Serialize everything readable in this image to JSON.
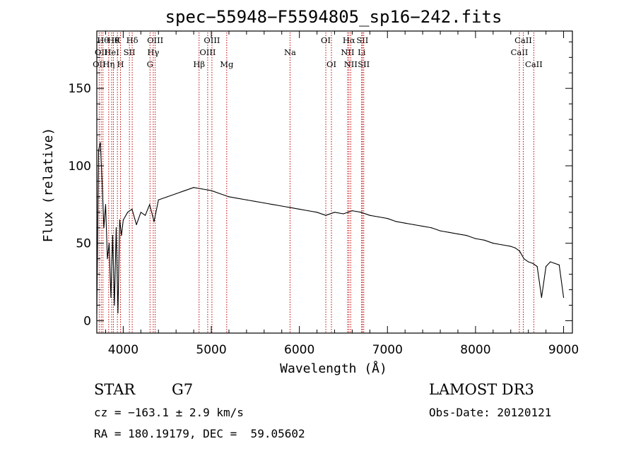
{
  "chart_data": {
    "type": "line",
    "title": "spec−55948−F5594805_sp16−242.fits",
    "xlabel": "Wavelength (Å)",
    "ylabel": "Flux (relative)",
    "xlim": [
      3700,
      9100
    ],
    "ylim": [
      -8,
      187
    ],
    "xticks": [
      4000,
      5000,
      6000,
      7000,
      8000,
      9000
    ],
    "yticks": [
      0,
      50,
      100,
      150
    ],
    "grid": false,
    "series": [
      {
        "name": "spectrum",
        "x": [
          3700,
          3720,
          3740,
          3760,
          3780,
          3800,
          3820,
          3840,
          3860,
          3880,
          3900,
          3920,
          3940,
          3960,
          3980,
          4000,
          4050,
          4100,
          4150,
          4200,
          4250,
          4300,
          4350,
          4400,
          4500,
          4600,
          4700,
          4800,
          4900,
          5000,
          5100,
          5200,
          5300,
          5400,
          5500,
          5600,
          5700,
          5800,
          5900,
          6000,
          6100,
          6200,
          6300,
          6400,
          6500,
          6600,
          6700,
          6800,
          6900,
          7000,
          7100,
          7200,
          7300,
          7400,
          7500,
          7600,
          7700,
          7800,
          7900,
          8000,
          8100,
          8200,
          8300,
          8400,
          8450,
          8500,
          8550,
          8600,
          8650,
          8700,
          8750,
          8800,
          8850,
          8900,
          8950,
          9000
        ],
        "y": [
          5,
          110,
          115,
          90,
          60,
          75,
          40,
          50,
          15,
          55,
          10,
          60,
          5,
          65,
          55,
          65,
          70,
          72,
          62,
          70,
          68,
          75,
          64,
          78,
          80,
          82,
          84,
          86,
          85,
          84,
          82,
          80,
          79,
          78,
          77,
          76,
          75,
          74,
          73,
          72,
          71,
          70,
          68,
          70,
          69,
          71,
          70,
          68,
          67,
          66,
          64,
          63,
          62,
          61,
          60,
          58,
          57,
          56,
          55,
          53,
          52,
          50,
          49,
          48,
          47,
          45,
          40,
          38,
          37,
          35,
          15,
          35,
          38,
          37,
          36,
          15
        ]
      }
    ],
    "lines": [
      {
        "x": 3727,
        "label": "OII",
        "row": 2
      },
      {
        "x": 3750,
        "label": "OII",
        "row": 1
      },
      {
        "x": 3770,
        "label": "Hθ",
        "row": 0
      },
      {
        "x": 3835,
        "label": "Hη",
        "row": 2
      },
      {
        "x": 3869,
        "label": "HeI",
        "row": 1
      },
      {
        "x": 3889,
        "label": "Hθ",
        "row": 0
      },
      {
        "x": 3934,
        "label": "K",
        "row": 0
      },
      {
        "x": 3969,
        "label": "H",
        "row": 2
      },
      {
        "x": 4070,
        "label": "SII",
        "row": 1
      },
      {
        "x": 4102,
        "label": "Hδ",
        "row": 0
      },
      {
        "x": 4304,
        "label": "G",
        "row": 2
      },
      {
        "x": 4341,
        "label": "Hγ",
        "row": 1
      },
      {
        "x": 4363,
        "label": "OIII",
        "row": 0
      },
      {
        "x": 4861,
        "label": "Hβ",
        "row": 2
      },
      {
        "x": 4959,
        "label": "OIII",
        "row": 1
      },
      {
        "x": 5007,
        "label": "OIII",
        "row": 0
      },
      {
        "x": 5175,
        "label": "Mg",
        "row": 2
      },
      {
        "x": 5894,
        "label": "Na",
        "row": 1
      },
      {
        "x": 6300,
        "label": "OI",
        "row": 0
      },
      {
        "x": 6364,
        "label": "OI",
        "row": 2
      },
      {
        "x": 6548,
        "label": "NII",
        "row": 1
      },
      {
        "x": 6563,
        "label": "Hα",
        "row": 0
      },
      {
        "x": 6583,
        "label": "NII",
        "row": 2
      },
      {
        "x": 6707,
        "label": "Li",
        "row": 1
      },
      {
        "x": 6716,
        "label": "SII",
        "row": 0
      },
      {
        "x": 6731,
        "label": "SII",
        "row": 2
      },
      {
        "x": 8498,
        "label": "CaII",
        "row": 1
      },
      {
        "x": 8542,
        "label": "CaII",
        "row": 0
      },
      {
        "x": 8662,
        "label": "CaII",
        "row": 2
      }
    ]
  },
  "info": {
    "object_class": "STAR",
    "subclass": "G7",
    "survey": "LAMOST DR3",
    "redshift_line": "cz = −163.1 ± 2.9 km/s",
    "obs_date": "Obs-Date: 20120121",
    "coords": "RA = 180.19179, DEC =  59.05602"
  }
}
